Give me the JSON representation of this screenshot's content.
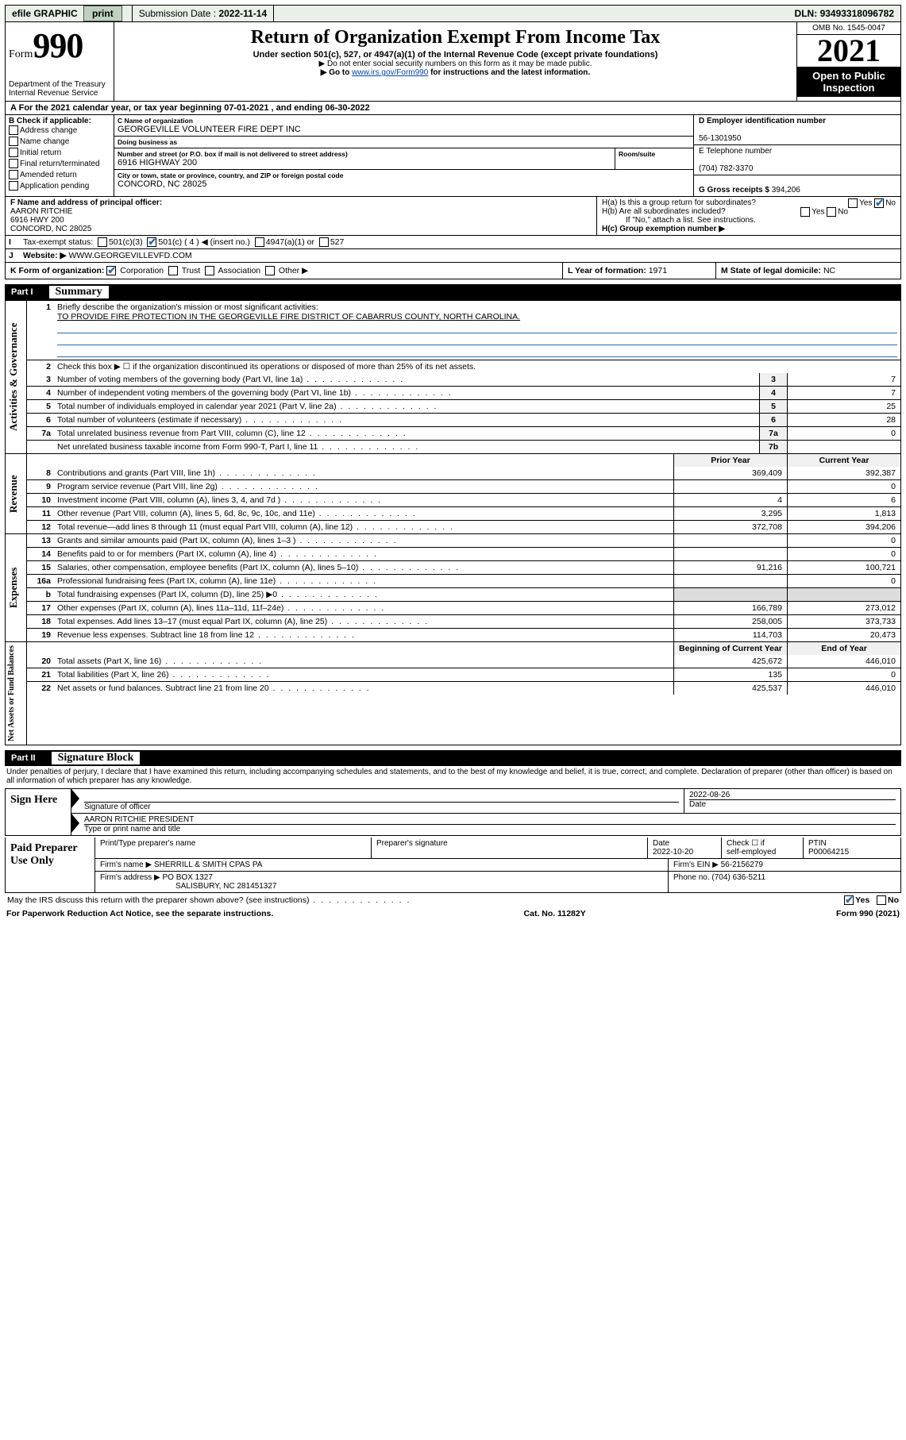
{
  "topbar": {
    "efile": "efile GRAPHIC",
    "print": "print",
    "sub_label": "Submission Date :",
    "sub_date": "2022-11-14",
    "dln_label": "DLN:",
    "dln": "93493318096782"
  },
  "header": {
    "form_word": "Form",
    "form_num": "990",
    "dept": "Department of the Treasury\nInternal Revenue Service",
    "title": "Return of Organization Exempt From Income Tax",
    "sub1": "Under section 501(c), 527, or 4947(a)(1) of the Internal Revenue Code (except private foundations)",
    "sub2": "▶ Do not enter social security numbers on this form as it may be made public.",
    "sub3_pre": "▶ Go to ",
    "sub3_link": "www.irs.gov/Form990",
    "sub3_post": " for instructions and the latest information.",
    "omb": "OMB No. 1545-0047",
    "year": "2021",
    "open": "Open to Public Inspection"
  },
  "period": {
    "text_a": "For the 2021 calendar year, or tax year beginning ",
    "begin": "07-01-2021",
    "text_b": " , and ending ",
    "end": "06-30-2022"
  },
  "boxB": {
    "label": "B Check if applicable:",
    "opts": [
      "Address change",
      "Name change",
      "Initial return",
      "Final return/terminated",
      "Amended return",
      "Application pending"
    ]
  },
  "boxC": {
    "name_lbl": "C Name of organization",
    "name": "GEORGEVILLE VOLUNTEER FIRE DEPT INC",
    "dba_lbl": "Doing business as",
    "dba": "",
    "street_lbl": "Number and street (or P.O. box if mail is not delivered to street address)",
    "room_lbl": "Room/suite",
    "street": "6916 HIGHWAY 200",
    "city_lbl": "City or town, state or province, country, and ZIP or foreign postal code",
    "city": "CONCORD, NC  28025"
  },
  "boxD": {
    "ein_lbl": "D Employer identification number",
    "ein": "56-1301950",
    "phone_lbl": "E Telephone number",
    "phone": "(704) 782-3370",
    "gross_lbl": "G Gross receipts $",
    "gross": "394,206"
  },
  "boxF": {
    "lbl": "F Name and address of principal officer:",
    "name": "AARON RITCHIE",
    "addr1": "6916 HWY 200",
    "addr2": "CONCORD, NC  28025"
  },
  "boxH": {
    "ha": "H(a)  Is this a group return for subordinates?",
    "hb": "H(b)  Are all subordinates included?",
    "hb_note": "If \"No,\" attach a list. See instructions.",
    "hc": "H(c)  Group exemption number ▶",
    "yes": "Yes",
    "no": "No"
  },
  "taxexempt": {
    "lbl": "Tax-exempt status:",
    "o1": "501(c)(3)",
    "o2": "501(c) ( 4 ) ◀ (insert no.)",
    "o3": "4947(a)(1) or",
    "o4": "527"
  },
  "rowJ": {
    "lbl": "Website: ▶",
    "val": "WWW.GEORGEVILLEVFD.COM"
  },
  "rowK": {
    "lbl": "K Form of organization:",
    "opts": [
      "Corporation",
      "Trust",
      "Association",
      "Other ▶"
    ]
  },
  "rowL": {
    "lbl": "L Year of formation:",
    "val": "1971"
  },
  "rowM": {
    "lbl": "M State of legal domicile:",
    "val": "NC"
  },
  "part1": {
    "pt": "Part I",
    "ti": "Summary"
  },
  "gov": {
    "vlabel": "Activities & Governance",
    "l1": "Briefly describe the organization's mission or most significant activities:",
    "mission": "TO PROVIDE FIRE PROTECTION IN THE GEORGEVILLE FIRE DISTRICT OF CABARRUS COUNTY, NORTH CAROLINA.",
    "l2": "Check this box ▶ ☐  if the organization discontinued its operations or disposed of more than 25% of its net assets.",
    "rows": [
      {
        "n": "3",
        "t": "Number of voting members of the governing body (Part VI, line 1a)",
        "b": "3",
        "v": "7"
      },
      {
        "n": "4",
        "t": "Number of independent voting members of the governing body (Part VI, line 1b)",
        "b": "4",
        "v": "7"
      },
      {
        "n": "5",
        "t": "Total number of individuals employed in calendar year 2021 (Part V, line 2a)",
        "b": "5",
        "v": "25"
      },
      {
        "n": "6",
        "t": "Total number of volunteers (estimate if necessary)",
        "b": "6",
        "v": "28"
      },
      {
        "n": "7a",
        "t": "Total unrelated business revenue from Part VIII, column (C), line 12",
        "b": "7a",
        "v": "0"
      },
      {
        "n": "",
        "t": "Net unrelated business taxable income from Form 990-T, Part I, line 11",
        "b": "7b",
        "v": ""
      }
    ]
  },
  "rev": {
    "vlabel": "Revenue",
    "header_prior": "Prior Year",
    "header_curr": "Current Year",
    "rows": [
      {
        "n": "8",
        "t": "Contributions and grants (Part VIII, line 1h)",
        "p": "369,409",
        "c": "392,387"
      },
      {
        "n": "9",
        "t": "Program service revenue (Part VIII, line 2g)",
        "p": "",
        "c": "0"
      },
      {
        "n": "10",
        "t": "Investment income (Part VIII, column (A), lines 3, 4, and 7d )",
        "p": "4",
        "c": "6"
      },
      {
        "n": "11",
        "t": "Other revenue (Part VIII, column (A), lines 5, 6d, 8c, 9c, 10c, and 11e)",
        "p": "3,295",
        "c": "1,813"
      },
      {
        "n": "12",
        "t": "Total revenue—add lines 8 through 11 (must equal Part VIII, column (A), line 12)",
        "p": "372,708",
        "c": "394,206"
      }
    ]
  },
  "exp": {
    "vlabel": "Expenses",
    "rows": [
      {
        "n": "13",
        "t": "Grants and similar amounts paid (Part IX, column (A), lines 1–3 )",
        "p": "",
        "c": "0"
      },
      {
        "n": "14",
        "t": "Benefits paid to or for members (Part IX, column (A), line 4)",
        "p": "",
        "c": "0"
      },
      {
        "n": "15",
        "t": "Salaries, other compensation, employee benefits (Part IX, column (A), lines 5–10)",
        "p": "91,216",
        "c": "100,721"
      },
      {
        "n": "16a",
        "t": "Professional fundraising fees (Part IX, column (A), line 11e)",
        "p": "",
        "c": "0"
      },
      {
        "n": "b",
        "t": "Total fundraising expenses (Part IX, column (D), line 25) ▶0",
        "p": "—shade—",
        "c": "—shade—"
      },
      {
        "n": "17",
        "t": "Other expenses (Part IX, column (A), lines 11a–11d, 11f–24e)",
        "p": "166,789",
        "c": "273,012"
      },
      {
        "n": "18",
        "t": "Total expenses. Add lines 13–17 (must equal Part IX, column (A), line 25)",
        "p": "258,005",
        "c": "373,733"
      },
      {
        "n": "19",
        "t": "Revenue less expenses. Subtract line 18 from line 12",
        "p": "114,703",
        "c": "20,473"
      }
    ]
  },
  "net": {
    "vlabel": "Net Assets or Fund Balances",
    "header_prior": "Beginning of Current Year",
    "header_curr": "End of Year",
    "rows": [
      {
        "n": "20",
        "t": "Total assets (Part X, line 16)",
        "p": "425,672",
        "c": "446,010"
      },
      {
        "n": "21",
        "t": "Total liabilities (Part X, line 26)",
        "p": "135",
        "c": "0"
      },
      {
        "n": "22",
        "t": "Net assets or fund balances. Subtract line 21 from line 20",
        "p": "425,537",
        "c": "446,010"
      }
    ]
  },
  "part2": {
    "pt": "Part II",
    "ti": "Signature Block"
  },
  "penalty": "Under penalties of perjury, I declare that I have examined this return, including accompanying schedules and statements, and to the best of my knowledge and belief, it is true, correct, and complete. Declaration of preparer (other than officer) is based on all information of which preparer has any knowledge.",
  "sign": {
    "lbl": "Sign Here",
    "sig_of_officer": "Signature of officer",
    "date_lbl": "Date",
    "date": "2022-08-26",
    "name_line": "AARON RITCHIE PRESIDENT",
    "name_lbl": "Type or print name and title"
  },
  "paid": {
    "lbl": "Paid Preparer Use Only",
    "h1": "Print/Type preparer's name",
    "h2": "Preparer's signature",
    "h3": "Date",
    "date": "2022-10-20",
    "h4_a": "Check ☐ if",
    "h4_b": "self-employed",
    "h5": "PTIN",
    "ptin": "P00064215",
    "firm_name_lbl": "Firm's name    ▶",
    "firm_name": "SHERRILL & SMITH CPAS PA",
    "firm_ein_lbl": "Firm's EIN ▶",
    "firm_ein": "56-2156279",
    "firm_addr_lbl": "Firm's address ▶",
    "firm_addr1": "PO BOX 1327",
    "firm_addr2": "SALISBURY, NC  281451327",
    "phone_lbl": "Phone no.",
    "phone": "(704) 636-5211"
  },
  "discuss": {
    "q": "May the IRS discuss this return with the preparer shown above? (see instructions)",
    "yes": "Yes",
    "no": "No"
  },
  "footer": {
    "l": "For Paperwork Reduction Act Notice, see the separate instructions.",
    "c": "Cat. No. 11282Y",
    "r": "Form 990 (2021)"
  },
  "colors": {
    "link": "#0645ad",
    "check": "#2a6db0",
    "topbar_bg": "#e8f0e8"
  }
}
